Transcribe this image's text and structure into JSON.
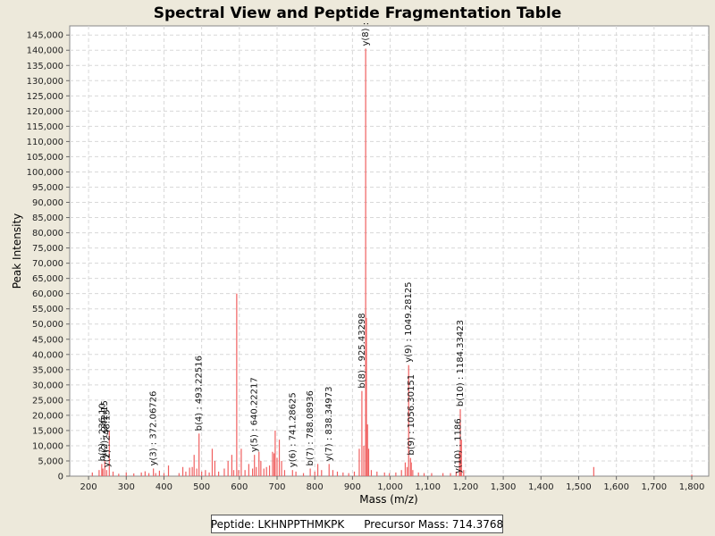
{
  "chart_data": {
    "type": "bar",
    "title": "Spectral View and Peptide Fragmentation Table",
    "xlabel": "Mass (m/z)",
    "ylabel": "Peak Intensity",
    "xlim": [
      150,
      1845
    ],
    "ylim": [
      0,
      148000
    ],
    "x_ticks": [
      200,
      300,
      400,
      500,
      600,
      700,
      800,
      900,
      1000,
      1100,
      1200,
      1300,
      1400,
      1500,
      1600,
      1700,
      1800
    ],
    "x_tick_labels": [
      "200",
      "300",
      "400",
      "500",
      "600",
      "700",
      "800",
      "900",
      "1,000",
      "1,100",
      "1,200",
      "1,300",
      "1,400",
      "1,500",
      "1,600",
      "1,700",
      "1,800"
    ],
    "y_ticks": [
      0,
      5000,
      10000,
      15000,
      20000,
      25000,
      30000,
      35000,
      40000,
      45000,
      50000,
      55000,
      60000,
      65000,
      70000,
      75000,
      80000,
      85000,
      90000,
      95000,
      100000,
      105000,
      110000,
      115000,
      120000,
      125000,
      130000,
      135000,
      140000,
      145000
    ],
    "y_tick_labels": [
      "0",
      "5,000",
      "10,000",
      "15,000",
      "20,000",
      "25,000",
      "30,000",
      "35,000",
      "40,000",
      "45,000",
      "50,000",
      "55,000",
      "60,000",
      "65,000",
      "70,000",
      "75,000",
      "80,000",
      "85,000",
      "90,000",
      "95,000",
      "100,000",
      "105,000",
      "110,000",
      "115,000",
      "120,000",
      "125,000",
      "130,000",
      "135,000",
      "140,000",
      "145,000"
    ],
    "grid": true,
    "peak_color": "#f06060",
    "peaks": [
      [
        210,
        1200
      ],
      [
        228,
        2000
      ],
      [
        235,
        4000
      ],
      [
        238,
        2500
      ],
      [
        243,
        5000
      ],
      [
        248,
        2000
      ],
      [
        255,
        15000
      ],
      [
        265,
        1500
      ],
      [
        280,
        800
      ],
      [
        300,
        1200
      ],
      [
        320,
        900
      ],
      [
        340,
        1200
      ],
      [
        350,
        1600
      ],
      [
        360,
        1000
      ],
      [
        372,
        2500
      ],
      [
        378,
        1000
      ],
      [
        388,
        1800
      ],
      [
        400,
        1000
      ],
      [
        412,
        3500
      ],
      [
        440,
        1000
      ],
      [
        450,
        3000
      ],
      [
        458,
        1500
      ],
      [
        468,
        2800
      ],
      [
        475,
        3000
      ],
      [
        480,
        7000
      ],
      [
        487,
        2500
      ],
      [
        493,
        14000
      ],
      [
        500,
        1500
      ],
      [
        510,
        2000
      ],
      [
        520,
        1200
      ],
      [
        528,
        9000
      ],
      [
        535,
        5000
      ],
      [
        545,
        1500
      ],
      [
        560,
        2500
      ],
      [
        570,
        5000
      ],
      [
        580,
        7000
      ],
      [
        585,
        2000
      ],
      [
        593,
        60000
      ],
      [
        598,
        2000
      ],
      [
        605,
        9000
      ],
      [
        615,
        2000
      ],
      [
        625,
        4000
      ],
      [
        635,
        2500
      ],
      [
        640,
        7000
      ],
      [
        645,
        3000
      ],
      [
        652,
        8000
      ],
      [
        657,
        5000
      ],
      [
        665,
        2500
      ],
      [
        672,
        3000
      ],
      [
        680,
        3500
      ],
      [
        688,
        8000
      ],
      [
        692,
        7500
      ],
      [
        695,
        15000
      ],
      [
        700,
        6000
      ],
      [
        706,
        12000
      ],
      [
        712,
        5000
      ],
      [
        720,
        2000
      ],
      [
        741,
        2000
      ],
      [
        750,
        1500
      ],
      [
        770,
        1000
      ],
      [
        788,
        2500
      ],
      [
        800,
        1500
      ],
      [
        808,
        4000
      ],
      [
        818,
        2000
      ],
      [
        838,
        4000
      ],
      [
        848,
        2000
      ],
      [
        860,
        1500
      ],
      [
        875,
        1200
      ],
      [
        890,
        1000
      ],
      [
        905,
        1500
      ],
      [
        918,
        9000
      ],
      [
        925,
        28000
      ],
      [
        930,
        10000
      ],
      [
        935,
        140500
      ],
      [
        937,
        52000
      ],
      [
        940,
        17000
      ],
      [
        943,
        9000
      ],
      [
        950,
        2000
      ],
      [
        965,
        1500
      ],
      [
        985,
        1200
      ],
      [
        998,
        1000
      ],
      [
        1015,
        1200
      ],
      [
        1030,
        2000
      ],
      [
        1040,
        4500
      ],
      [
        1045,
        3000
      ],
      [
        1049,
        36500
      ],
      [
        1054,
        6000
      ],
      [
        1056,
        4500
      ],
      [
        1060,
        2000
      ],
      [
        1075,
        1200
      ],
      [
        1090,
        1000
      ],
      [
        1110,
        1000
      ],
      [
        1140,
        1000
      ],
      [
        1160,
        1000
      ],
      [
        1175,
        1500
      ],
      [
        1184,
        8000
      ],
      [
        1186,
        22000
      ],
      [
        1189,
        12000
      ],
      [
        1195,
        2000
      ],
      [
        1540,
        3000
      ],
      [
        1800,
        500
      ]
    ],
    "annotations": [
      {
        "x": 236,
        "label": "b(2) : 236.10"
      },
      {
        "x": 242,
        "label": "y(2) : 242.15"
      },
      {
        "x": 248,
        "label": "y(2) : 248.15"
      },
      {
        "x": 372,
        "label": "y(3) : 372.06726"
      },
      {
        "x": 493,
        "label": "b(4) : 493.22516"
      },
      {
        "x": 640,
        "label": "y(5) : 640.22217"
      },
      {
        "x": 741,
        "label": "y(6) : 741.28625"
      },
      {
        "x": 788,
        "label": "b(7) : 788.08936"
      },
      {
        "x": 838,
        "label": "y(7) : 838.34973"
      },
      {
        "x": 925,
        "label": "b(8) : 925.43298"
      },
      {
        "x": 935,
        "label": "y(8) :"
      },
      {
        "x": 1049,
        "label": "y(9) : 1049.28125"
      },
      {
        "x": 1056,
        "label": "b(9) : 1056.30151"
      },
      {
        "x": 1180,
        "label": "y(10) : 1186"
      },
      {
        "x": 1186,
        "label": "b(10) : 1184.33423"
      }
    ]
  },
  "legend": {
    "peptide_label": "Peptide: LKHNPPTHMKPK",
    "precursor_label": "Precursor Mass: 714.3768"
  }
}
